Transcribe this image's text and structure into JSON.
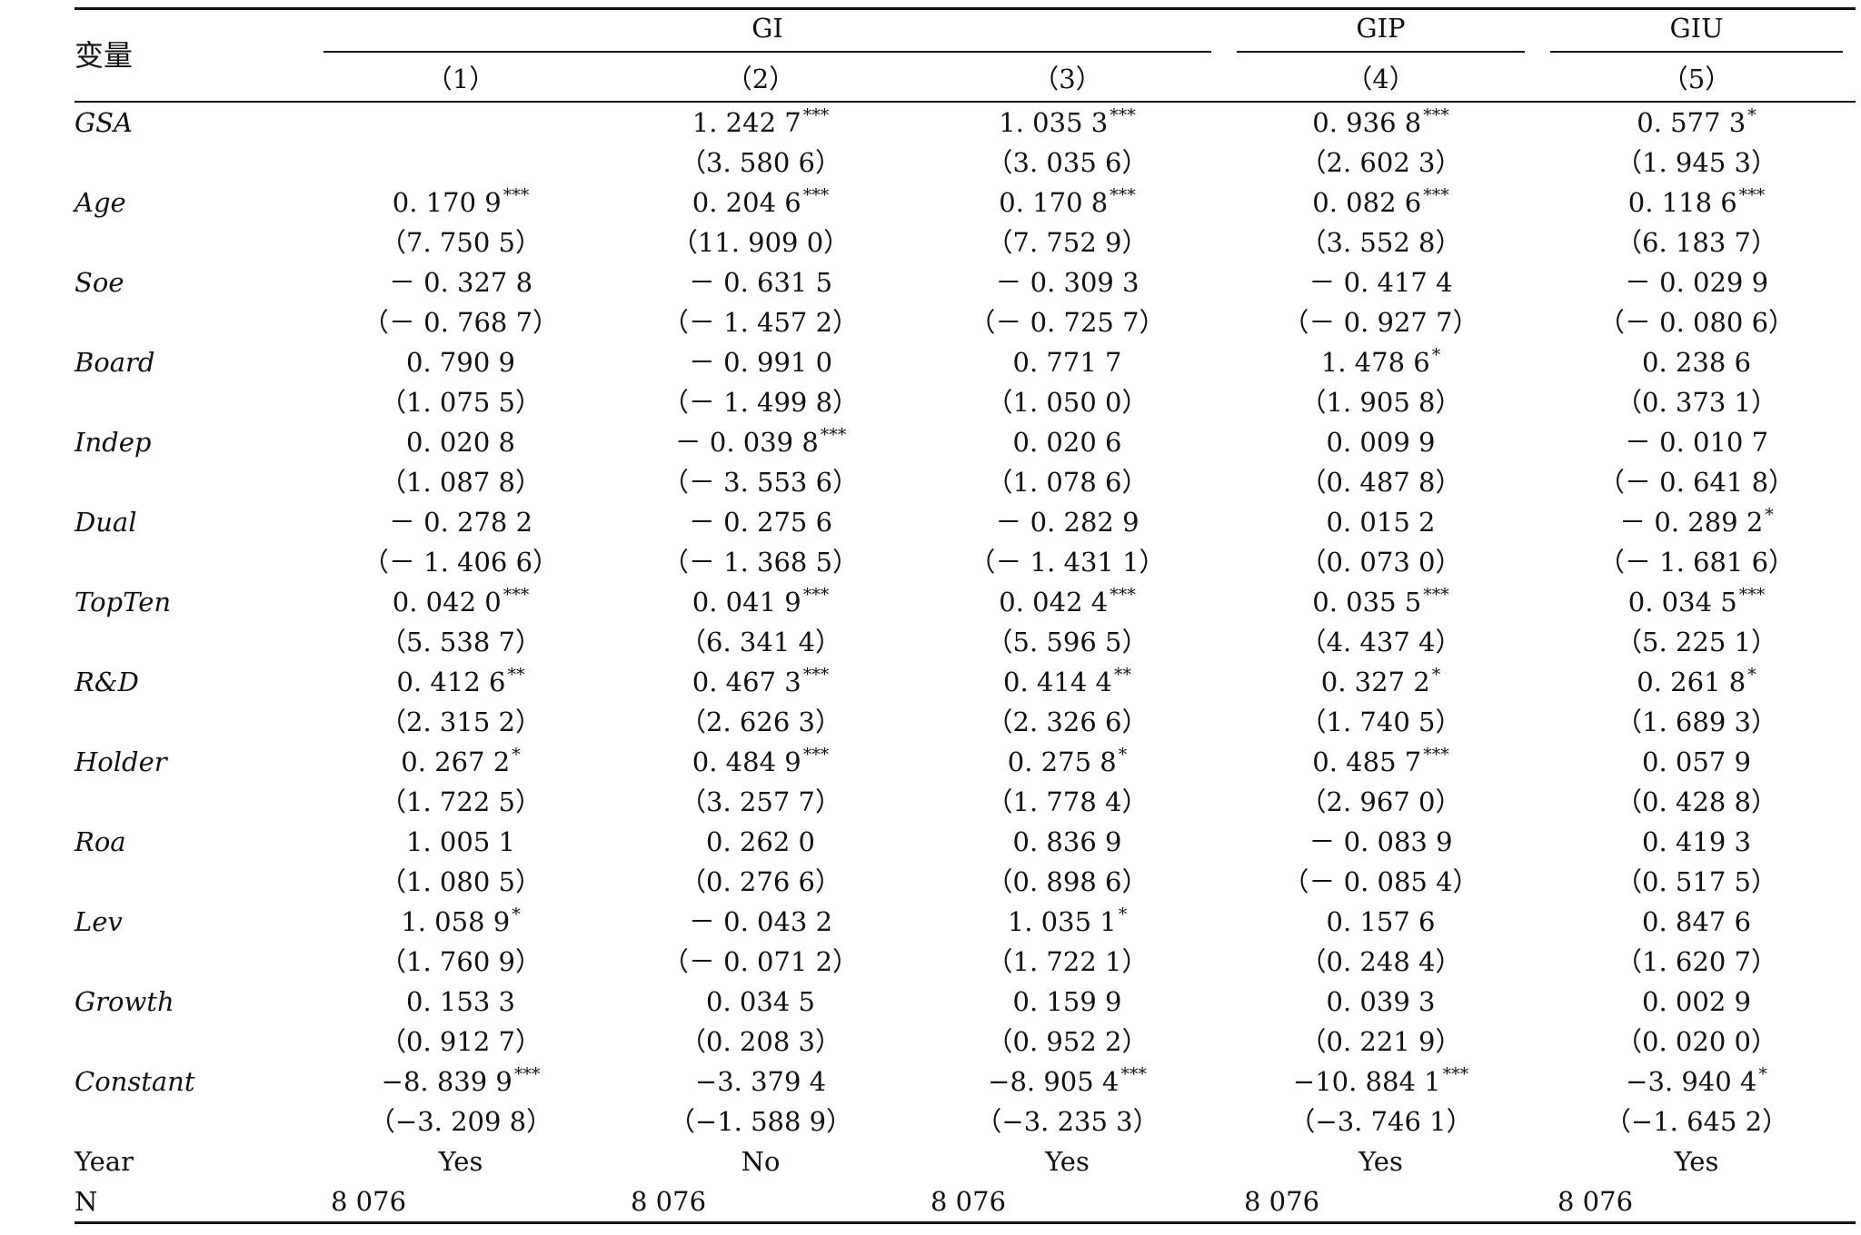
{
  "table": {
    "var_header": "变量",
    "groups": [
      {
        "label": "GI",
        "span": 3
      },
      {
        "label": "GIP",
        "span": 1
      },
      {
        "label": "GIU",
        "span": 1
      }
    ],
    "columns": [
      "（1）",
      "（2）",
      "（3）",
      "（4）",
      "（5）"
    ],
    "rows": [
      {
        "name": "GSA",
        "italic": true,
        "coef": [
          "",
          "1. 242 7",
          "1. 035 3",
          "0. 936 8",
          "0. 577 3"
        ],
        "stars": [
          "",
          "***",
          "***",
          "***",
          "*"
        ],
        "t": [
          "",
          "（3. 580 6）",
          "（3. 035 6）",
          "（2. 602 3）",
          "（1. 945 3）"
        ]
      },
      {
        "name": "Age",
        "italic": true,
        "coef": [
          "0. 170 9",
          "0. 204 6",
          "0. 170 8",
          "0. 082 6",
          "0. 118 6"
        ],
        "stars": [
          "***",
          "***",
          "***",
          "***",
          "***"
        ],
        "t": [
          "（7. 750 5）",
          "（11. 909 0）",
          "（7. 752 9）",
          "（3. 552 8）",
          "（6. 183 7）"
        ]
      },
      {
        "name": "Soe",
        "italic": true,
        "coef": [
          "－ 0. 327 8",
          "－ 0. 631 5",
          "－ 0. 309 3",
          "－ 0. 417 4",
          "－ 0. 029 9"
        ],
        "stars": [
          "",
          "",
          "",
          "",
          ""
        ],
        "t": [
          "（－ 0. 768 7）",
          "（－ 1. 457 2）",
          "（－ 0. 725 7）",
          "（－ 0. 927 7）",
          "（－ 0. 080 6）"
        ]
      },
      {
        "name": "Board",
        "italic": true,
        "coef": [
          "0. 790 9",
          "－ 0. 991 0",
          "0. 771 7",
          "1. 478 6",
          "0. 238 6"
        ],
        "stars": [
          "",
          "",
          "",
          "*",
          ""
        ],
        "t": [
          "（1. 075 5）",
          "（－ 1. 499 8）",
          "（1. 050 0）",
          "（1. 905 8）",
          "（0. 373 1）"
        ]
      },
      {
        "name": "Indep",
        "italic": true,
        "coef": [
          "0. 020 8",
          "－ 0. 039 8",
          "0. 020 6",
          "0. 009 9",
          "－ 0. 010 7"
        ],
        "stars": [
          "",
          "***",
          "",
          "",
          ""
        ],
        "t": [
          "（1. 087 8）",
          "（－ 3. 553 6）",
          "（1. 078 6）",
          "（0. 487 8）",
          "（－ 0. 641 8）"
        ]
      },
      {
        "name": "Dual",
        "italic": true,
        "coef": [
          "－ 0. 278 2",
          "－ 0. 275 6",
          "－ 0. 282 9",
          "0. 015 2",
          "－ 0. 289 2"
        ],
        "stars": [
          "",
          "",
          "",
          "",
          "*"
        ],
        "t": [
          "（－ 1. 406 6）",
          "（－ 1. 368 5）",
          "（－ 1. 431 1）",
          "（0. 073 0）",
          "（－ 1. 681 6）"
        ]
      },
      {
        "name": "TopTen",
        "italic": true,
        "coef": [
          "0. 042 0",
          "0. 041 9",
          "0. 042 4",
          "0. 035 5",
          "0. 034 5"
        ],
        "stars": [
          "***",
          "***",
          "***",
          "***",
          "***"
        ],
        "t": [
          "（5. 538 7）",
          "（6. 341 4）",
          "（5. 596 5）",
          "（4. 437 4）",
          "（5. 225 1）"
        ]
      },
      {
        "name": "R&D",
        "italic": true,
        "coef": [
          "0. 412 6",
          "0. 467 3",
          "0. 414 4",
          "0. 327 2",
          "0. 261 8"
        ],
        "stars": [
          "**",
          "***",
          "**",
          "*",
          "*"
        ],
        "t": [
          "（2. 315 2）",
          "（2. 626 3）",
          "（2. 326 6）",
          "（1. 740 5）",
          "（1. 689 3）"
        ]
      },
      {
        "name": "Holder",
        "italic": true,
        "coef": [
          "0. 267 2",
          "0. 484 9",
          "0. 275 8",
          "0. 485 7",
          "0. 057 9"
        ],
        "stars": [
          "*",
          "***",
          "*",
          "***",
          ""
        ],
        "t": [
          "（1. 722 5）",
          "（3. 257 7）",
          "（1. 778 4）",
          "（2. 967 0）",
          "（0. 428 8）"
        ]
      },
      {
        "name": "Roa",
        "italic": true,
        "coef": [
          "1. 005 1",
          "0. 262 0",
          "0. 836 9",
          "－ 0. 083 9",
          "0. 419 3"
        ],
        "stars": [
          "",
          "",
          "",
          "",
          ""
        ],
        "t": [
          "（1. 080 5）",
          "（0. 276 6）",
          "（0. 898 6）",
          "（－ 0. 085 4）",
          "（0. 517 5）"
        ]
      },
      {
        "name": "Lev",
        "italic": true,
        "coef": [
          "1. 058 9",
          "－ 0. 043 2",
          "1. 035 1",
          "0. 157 6",
          "0. 847 6"
        ],
        "stars": [
          "*",
          "",
          "*",
          "",
          ""
        ],
        "t": [
          "（1. 760 9）",
          "（－ 0. 071 2）",
          "（1. 722 1）",
          "（0. 248 4）",
          "（1. 620 7）"
        ]
      },
      {
        "name": "Growth",
        "italic": true,
        "coef": [
          "0. 153 3",
          "0. 034 5",
          "0. 159 9",
          "0. 039 3",
          "0. 002 9"
        ],
        "stars": [
          "",
          "",
          "",
          "",
          ""
        ],
        "t": [
          "（0. 912 7）",
          "（0. 208 3）",
          "（0. 952 2）",
          "（0. 221 9）",
          "（0. 020 0）"
        ]
      },
      {
        "name": "Constant",
        "italic": true,
        "coef": [
          "−8. 839 9",
          "−3. 379 4",
          "−8. 905 4",
          "−10. 884 1",
          "−3. 940 4"
        ],
        "stars": [
          "***",
          "",
          "***",
          "***",
          "*"
        ],
        "t": [
          "（−3. 209 8）",
          "（−1. 588 9）",
          "（−3. 235 3）",
          "（−3. 746 1）",
          "（−1. 645 2）"
        ]
      }
    ],
    "year_row": {
      "name": "Year",
      "values": [
        "Yes",
        "No",
        "Yes",
        "Yes",
        "Yes"
      ]
    },
    "n_row": {
      "name": "N",
      "values": [
        "8 076",
        "8 076",
        "8 076",
        "8 076",
        "8 076"
      ]
    }
  }
}
